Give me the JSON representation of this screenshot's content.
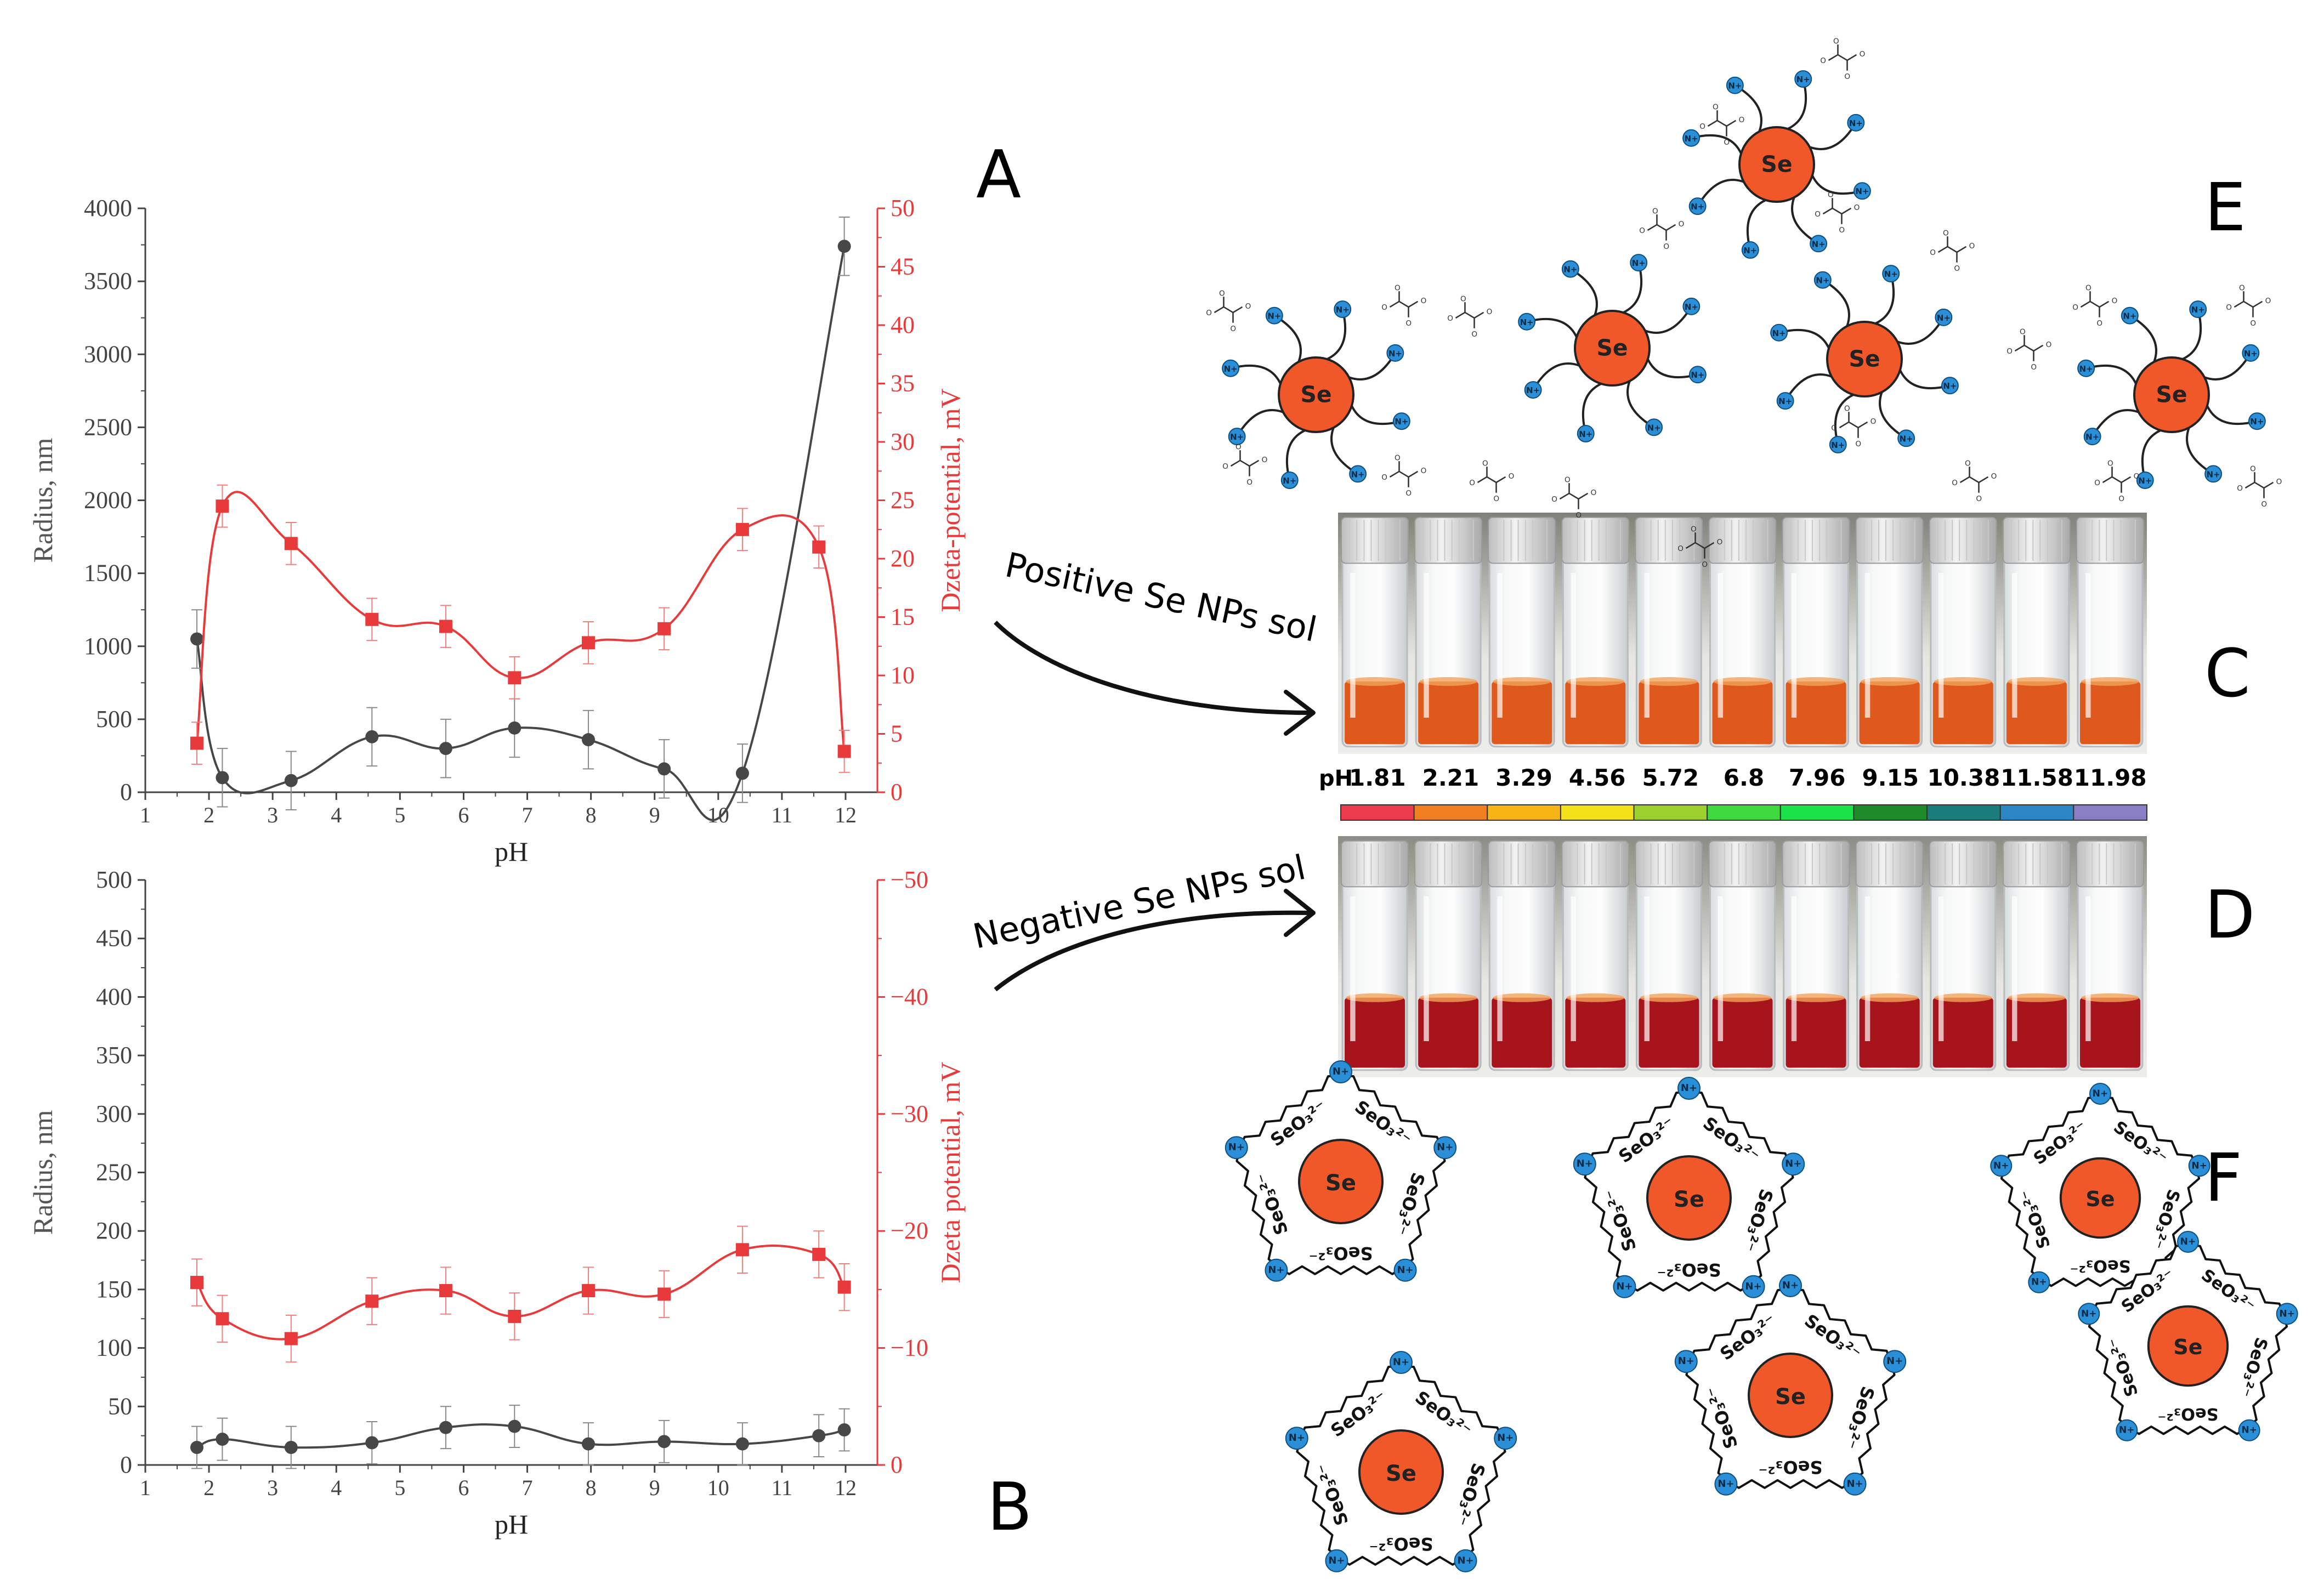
{
  "chart_data": [
    {
      "panel": "A",
      "type": "line",
      "x_label": "pH",
      "x_range": [
        1,
        12.5
      ],
      "x_ticks": [
        1,
        2,
        3,
        4,
        5,
        6,
        7,
        8,
        9,
        10,
        11,
        12
      ],
      "x_tick_labels": [
        "1",
        "2",
        "3",
        "4",
        "5",
        "6",
        "7",
        "8",
        "9",
        "10",
        "11",
        "12"
      ],
      "left_axis": {
        "label": "Radius, nm",
        "range": [
          0,
          4000
        ],
        "ticks": [
          0,
          500,
          1000,
          1500,
          2000,
          2500,
          3000,
          3500,
          4000
        ],
        "tick_labels": [
          "0",
          "500",
          "1000",
          "1500",
          "2000",
          "2500",
          "3000",
          "3500",
          "4000"
        ]
      },
      "right_axis": {
        "label": "Dzeta-potential, mV",
        "range": [
          0,
          50
        ],
        "ticks": [
          0,
          5,
          10,
          15,
          20,
          25,
          30,
          35,
          40,
          45,
          50
        ],
        "tick_labels": [
          "0",
          "5",
          "10",
          "15",
          "20",
          "25",
          "30",
          "35",
          "40",
          "45",
          "50"
        ]
      },
      "series": [
        {
          "name": "Radius",
          "axis": "left",
          "color": "#474747",
          "marker": "circle",
          "x": [
            1.81,
            2.21,
            3.29,
            4.56,
            5.72,
            6.8,
            7.96,
            9.15,
            10.38,
            11.98
          ],
          "y": [
            1050,
            100,
            80,
            380,
            300,
            440,
            360,
            160,
            130,
            3740
          ],
          "err": [
            200,
            200,
            200,
            200,
            200,
            200,
            200,
            200,
            200,
            200
          ]
        },
        {
          "name": "Dzeta-potential",
          "axis": "right",
          "color": "#e83a3a",
          "marker": "square",
          "x": [
            1.81,
            2.21,
            3.29,
            4.56,
            5.72,
            6.8,
            7.96,
            9.15,
            10.38,
            11.58,
            11.98
          ],
          "y": [
            4.2,
            24.5,
            21.3,
            14.8,
            14.2,
            9.8,
            12.8,
            14,
            22.5,
            21,
            3.5
          ],
          "err": [
            1.8,
            1.8,
            1.8,
            1.8,
            1.8,
            1.8,
            1.8,
            1.8,
            1.8,
            1.8,
            1.8
          ]
        }
      ]
    },
    {
      "panel": "B",
      "type": "line",
      "x_label": "pH",
      "x_range": [
        1,
        12.5
      ],
      "x_ticks": [
        1,
        2,
        3,
        4,
        5,
        6,
        7,
        8,
        9,
        10,
        11,
        12
      ],
      "x_tick_labels": [
        "1",
        "2",
        "3",
        "4",
        "5",
        "6",
        "7",
        "8",
        "9",
        "10",
        "11",
        "12"
      ],
      "left_axis": {
        "label": "Radius, nm",
        "range": [
          0,
          500
        ],
        "ticks": [
          0,
          50,
          100,
          150,
          200,
          250,
          300,
          350,
          400,
          450,
          500
        ],
        "tick_labels": [
          "0",
          "50",
          "100",
          "150",
          "200",
          "250",
          "300",
          "350",
          "400",
          "450",
          "500"
        ]
      },
      "right_axis": {
        "label": "Dzeta potential, mV",
        "range": [
          0,
          -50
        ],
        "ticks": [
          0,
          -10,
          -20,
          -30,
          -40,
          -50
        ],
        "tick_labels": [
          "0",
          "−10",
          "−20",
          "−30",
          "−40",
          "−50"
        ]
      },
      "series": [
        {
          "name": "Radius",
          "axis": "left",
          "color": "#474747",
          "marker": "circle",
          "x": [
            1.81,
            2.21,
            3.29,
            4.56,
            5.72,
            6.8,
            7.96,
            9.15,
            10.38,
            11.58,
            11.98
          ],
          "y": [
            15,
            22,
            15,
            19,
            32,
            33,
            18,
            20,
            18,
            25,
            30
          ],
          "err": [
            18,
            18,
            18,
            18,
            18,
            18,
            18,
            18,
            18,
            18,
            18
          ]
        },
        {
          "name": "Dzeta potential",
          "axis": "right",
          "color": "#e83a3a",
          "marker": "square",
          "x": [
            1.81,
            2.21,
            3.29,
            4.56,
            5.72,
            6.8,
            7.96,
            9.15,
            10.38,
            11.58,
            11.98
          ],
          "y": [
            -15.6,
            -12.5,
            -10.8,
            -14,
            -14.9,
            -12.7,
            -14.9,
            -14.6,
            -18.4,
            -18,
            -15.2
          ],
          "err": [
            2,
            2,
            2,
            2,
            2,
            2,
            2,
            2,
            2,
            2,
            2
          ]
        }
      ]
    }
  ],
  "panel_letters": {
    "a": "A",
    "b": "B",
    "c": "C",
    "d": "D",
    "e": "E",
    "f": "F"
  },
  "arrows": {
    "positive_label": "Positive Se NPs sol",
    "negative_label": "Negative Se NPs sol"
  },
  "ph_scale": {
    "label": "pH",
    "values": [
      "1.81",
      "2.21",
      "3.29",
      "4.56",
      "5.72",
      "6.8",
      "7.96",
      "9.15",
      "10.38",
      "11.58",
      "11.98"
    ],
    "colors": [
      "#ec3b4d",
      "#f07f22",
      "#f7b415",
      "#f5e11a",
      "#9bd02e",
      "#3fd83f",
      "#1ce24a",
      "#1e8a2a",
      "#1b7d7b",
      "#2c86c6",
      "#8a7fc4"
    ]
  },
  "photos": {
    "positive_liquid_color": "#e0591c",
    "negative_liquid_color": "#a8141c"
  },
  "schematic": {
    "core_label": "Se",
    "cation_label": "N+",
    "anion_label": "SeO₃²⁻",
    "core_color": "#f0582a",
    "cation_color": "#2a8fd6"
  }
}
